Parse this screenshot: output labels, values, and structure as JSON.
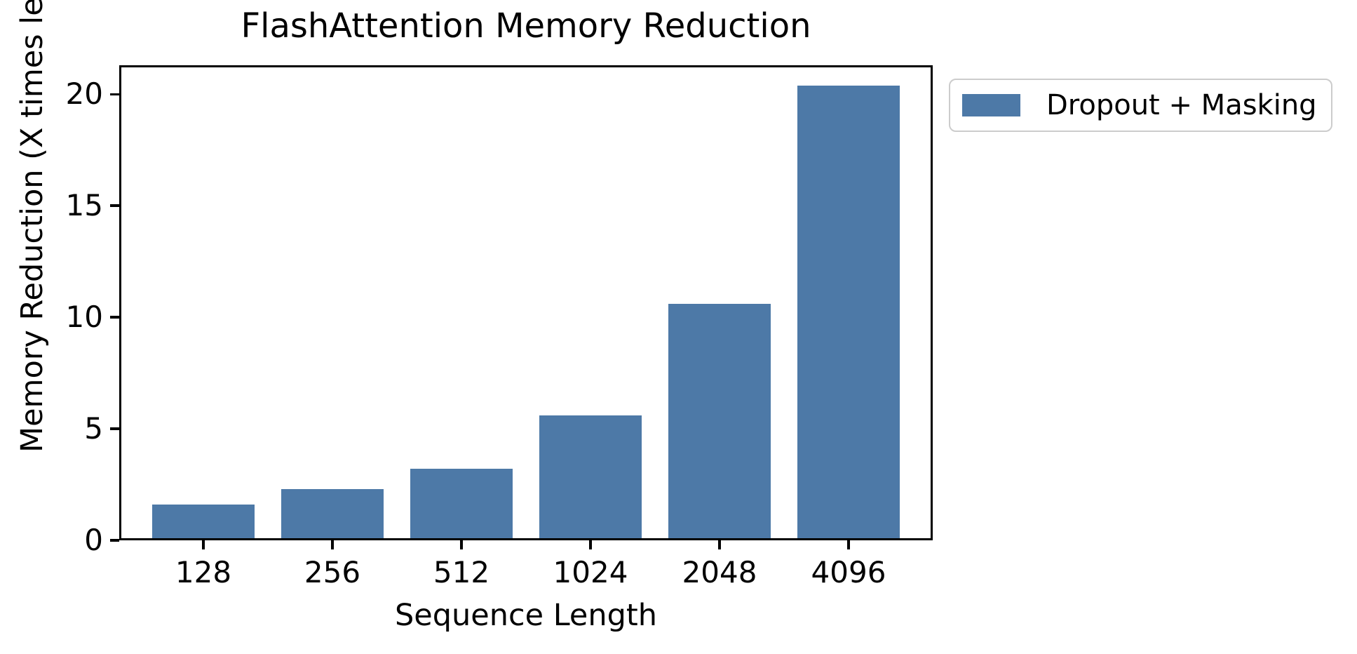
{
  "chart_data": {
    "type": "bar",
    "title": "FlashAttention Memory Reduction",
    "xlabel": "Sequence Length",
    "ylabel": "Memory Reduction (X times less)",
    "categories": [
      "128",
      "256",
      "512",
      "1024",
      "2048",
      "4096"
    ],
    "series": [
      {
        "name": "Dropout + Masking",
        "values": [
          1.5,
          2.2,
          3.1,
          5.5,
          10.5,
          20.3
        ]
      }
    ],
    "yticks": [
      0,
      5,
      10,
      15,
      20
    ],
    "ylim": [
      0,
      21.3
    ],
    "grid": false,
    "legend_position": "upper-right-outside",
    "bar_color": "#4d79a7",
    "axis_color": "#000000",
    "legend_border_color": "#cccccc"
  }
}
